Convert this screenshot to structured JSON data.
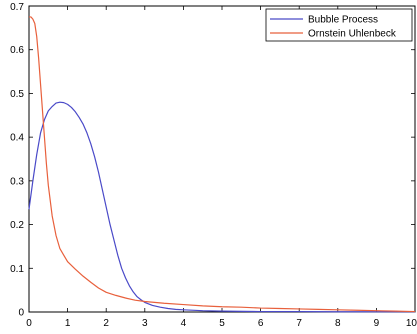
{
  "chart_data": {
    "type": "line",
    "title": "",
    "xlabel": "",
    "ylabel": "",
    "xlim": [
      0,
      10
    ],
    "ylim": [
      0,
      0.7
    ],
    "x_ticks": [
      "0",
      "1",
      "2",
      "3",
      "4",
      "5",
      "6",
      "7",
      "8",
      "9",
      "10"
    ],
    "y_ticks": [
      "0",
      "0.1",
      "0.2",
      "0.3",
      "0.4",
      "0.5",
      "0.6",
      "0.7"
    ],
    "grid": false,
    "legend_position": "top-right",
    "series": [
      {
        "name": "Bubble Process",
        "color": "#4a4ac8",
        "x": [
          0,
          0.1,
          0.2,
          0.3,
          0.4,
          0.5,
          0.6,
          0.7,
          0.8,
          0.9,
          1.0,
          1.1,
          1.2,
          1.3,
          1.4,
          1.5,
          1.6,
          1.7,
          1.8,
          1.9,
          2.0,
          2.1,
          2.2,
          2.3,
          2.4,
          2.5,
          2.6,
          2.7,
          2.8,
          2.9,
          3.0,
          3.2,
          3.4,
          3.6,
          3.8,
          4.0,
          4.5,
          5.0,
          6.0,
          7.0,
          8.0,
          9.0,
          10.0
        ],
        "y": [
          0.235,
          0.3,
          0.36,
          0.41,
          0.44,
          0.46,
          0.47,
          0.478,
          0.48,
          0.479,
          0.475,
          0.468,
          0.458,
          0.445,
          0.43,
          0.41,
          0.385,
          0.355,
          0.32,
          0.28,
          0.24,
          0.2,
          0.165,
          0.13,
          0.1,
          0.078,
          0.06,
          0.046,
          0.035,
          0.028,
          0.022,
          0.015,
          0.011,
          0.008,
          0.006,
          0.005,
          0.003,
          0.002,
          0.001,
          0.001,
          0.0005,
          0.0005,
          0.0005
        ]
      },
      {
        "name": "Ornstein Uhlenbeck",
        "color": "#e8603c",
        "x": [
          0,
          0.05,
          0.1,
          0.15,
          0.2,
          0.25,
          0.3,
          0.35,
          0.4,
          0.45,
          0.5,
          0.6,
          0.7,
          0.8,
          0.9,
          1.0,
          1.2,
          1.4,
          1.6,
          1.8,
          2.0,
          2.25,
          2.5,
          2.75,
          3.0,
          3.5,
          4.0,
          4.5,
          5.0,
          5.5,
          6.0,
          6.5,
          7.0,
          7.5,
          8.0,
          8.5,
          9.0,
          9.5,
          10.0
        ],
        "y": [
          0.675,
          0.675,
          0.67,
          0.66,
          0.63,
          0.58,
          0.52,
          0.46,
          0.4,
          0.34,
          0.29,
          0.22,
          0.175,
          0.145,
          0.13,
          0.115,
          0.098,
          0.082,
          0.068,
          0.055,
          0.045,
          0.038,
          0.032,
          0.027,
          0.024,
          0.02,
          0.017,
          0.014,
          0.012,
          0.011,
          0.009,
          0.008,
          0.007,
          0.006,
          0.005,
          0.004,
          0.003,
          0.002,
          0.001
        ]
      }
    ]
  }
}
